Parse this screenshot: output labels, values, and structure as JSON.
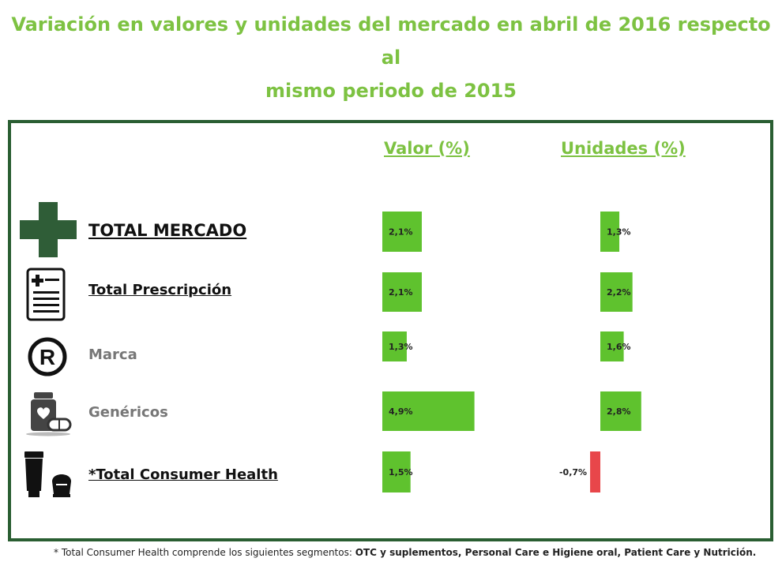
{
  "title": {
    "line1": "Variación en valores y unidades del mercado en abril de 2016 respecto al",
    "line2": "mismo periodo de 2015"
  },
  "colors": {
    "title": "#7dc242",
    "positive": "#5fc22e",
    "negative": "#e8464a",
    "frame": "#2a5e32",
    "cross": "#2f5d37"
  },
  "chart_data": {
    "type": "bar",
    "categories": [
      "TOTAL MERCADO",
      "Total Prescripción",
      "Marca",
      "Genéricos",
      "*Total Consumer Health"
    ],
    "series": [
      {
        "name": "Valor (%)",
        "values": [
          2.1,
          2.1,
          1.3,
          4.9,
          1.5
        ],
        "labels": [
          "2,1%",
          "2,1%",
          "1,3%",
          "4,9%",
          "1,5%"
        ]
      },
      {
        "name": "Unidades (%)",
        "values": [
          1.3,
          2.2,
          1.6,
          2.8,
          -0.7
        ],
        "labels": [
          "1,3%",
          "2,2%",
          "1,6%",
          "2,8%",
          "-0,7%"
        ]
      }
    ]
  },
  "rows": [
    {
      "label": "TOTAL MERCADO",
      "icon": "pharmacy-cross-icon"
    },
    {
      "label": "Total Prescripción",
      "icon": "prescription-document-icon"
    },
    {
      "label": "Marca",
      "icon": "registered-trademark-icon"
    },
    {
      "label": "Genéricos",
      "icon": "pill-bottle-icon"
    },
    {
      "label": "*Total Consumer Health",
      "icon": "cosmetics-icon"
    }
  ],
  "footnote": {
    "prefix": "* Total Consumer Health comprende los siguientes segmentos: ",
    "segments": "OTC y suplementos, Personal Care e Higiene oral, Patient Care y Nutrición."
  }
}
